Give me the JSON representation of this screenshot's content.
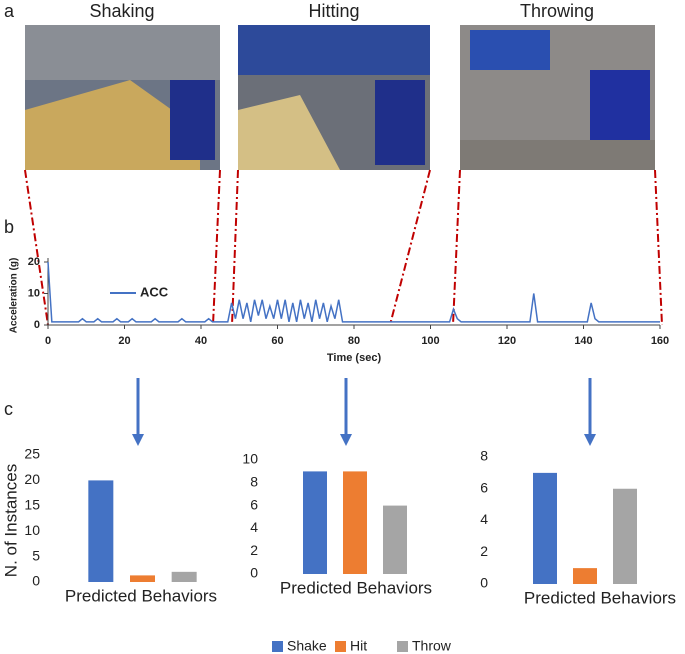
{
  "panel_labels": [
    "a",
    "b",
    "c"
  ],
  "photo_titles": [
    "Shaking",
    "Hitting",
    "Throwing"
  ],
  "legend": [
    {
      "name": "Shake",
      "color": "#4472c4"
    },
    {
      "name": "Hit",
      "color": "#ed7d31"
    },
    {
      "name": "Throw",
      "color": "#a5a5a5"
    }
  ],
  "chart_data": [
    {
      "type": "line",
      "xlabel": "Time (sec)",
      "ylabel": "Acceleration (g)",
      "xlim": [
        0,
        160
      ],
      "xticks": [
        0,
        20,
        40,
        60,
        80,
        100,
        120,
        140,
        160
      ],
      "ylim": [
        0,
        20
      ],
      "yticks": [
        0,
        10,
        20
      ],
      "x": [
        0,
        1,
        2,
        3,
        4,
        5,
        6,
        7,
        8,
        9,
        10,
        11,
        12,
        13,
        14,
        15,
        16,
        17,
        18,
        19,
        20,
        21,
        22,
        23,
        24,
        25,
        26,
        27,
        28,
        29,
        30,
        31,
        32,
        33,
        34,
        35,
        36,
        37,
        38,
        39,
        40,
        41,
        42,
        43,
        44,
        45,
        46,
        47,
        48,
        49,
        50,
        51,
        52,
        53,
        54,
        55,
        56,
        57,
        58,
        59,
        60,
        61,
        62,
        63,
        64,
        65,
        66,
        67,
        68,
        69,
        70,
        71,
        72,
        73,
        74,
        75,
        76,
        77,
        78,
        79,
        80,
        81,
        82,
        83,
        84,
        85,
        86,
        87,
        88,
        89,
        90,
        91,
        92,
        93,
        94,
        95,
        96,
        97,
        98,
        99,
        100,
        101,
        102,
        103,
        104,
        105,
        106,
        107,
        108,
        109,
        110,
        111,
        112,
        113,
        114,
        115,
        116,
        117,
        118,
        119,
        120,
        121,
        122,
        123,
        124,
        125,
        126,
        127,
        128,
        129,
        130,
        131,
        132,
        133,
        134,
        135,
        136,
        137,
        138,
        139,
        140,
        141,
        142,
        143,
        144,
        145,
        146,
        147,
        148,
        149,
        150,
        151,
        152,
        153,
        154,
        155,
        156,
        157,
        158,
        159,
        160
      ],
      "series": [
        {
          "name": "ACC",
          "color": "#4472c4",
          "values": [
            20,
            1,
            1,
            1,
            1,
            1,
            1,
            1,
            1,
            2,
            1,
            1,
            1,
            2,
            1,
            1,
            1,
            1,
            2,
            1,
            1,
            1,
            2,
            1,
            1,
            1,
            1,
            1,
            2,
            1,
            1,
            1,
            1,
            1,
            1,
            2,
            1,
            1,
            1,
            1,
            1,
            1,
            2,
            1,
            1,
            1,
            1,
            1,
            7,
            2,
            8,
            2,
            7,
            1,
            8,
            3,
            8,
            2,
            6,
            2,
            8,
            2,
            8,
            1,
            7,
            1,
            8,
            2,
            7,
            1,
            8,
            2,
            7,
            1,
            6,
            2,
            8,
            1,
            1,
            1,
            1,
            1,
            1,
            1,
            1,
            1,
            1,
            1,
            1,
            1,
            1,
            1,
            1,
            1,
            1,
            1,
            1,
            1,
            1,
            1,
            1,
            1,
            1,
            1,
            1,
            1,
            5,
            2,
            1,
            1,
            1,
            1,
            1,
            1,
            1,
            1,
            1,
            1,
            1,
            1,
            1,
            1,
            1,
            1,
            1,
            1,
            1,
            10,
            1,
            1,
            1,
            1,
            1,
            1,
            1,
            1,
            1,
            1,
            1,
            1,
            1,
            1,
            7,
            2,
            1,
            1,
            1,
            1,
            1,
            1,
            1,
            1,
            1,
            1,
            1,
            1,
            1,
            1,
            1,
            1,
            1
          ]
        }
      ]
    },
    {
      "type": "bar",
      "xlabel": "Predicted Behaviors",
      "ylabel": "N. of Instances",
      "ylim": [
        0,
        25
      ],
      "yticks": [
        0,
        5,
        10,
        15,
        20,
        25
      ],
      "values": [
        20,
        1.3,
        2
      ]
    },
    {
      "type": "bar",
      "xlabel": "Predicted Behaviors",
      "ylim": [
        0,
        10
      ],
      "yticks": [
        0,
        2,
        4,
        6,
        8,
        10
      ],
      "values": [
        9,
        9,
        6
      ]
    },
    {
      "type": "bar",
      "xlabel": "Predicted Behaviors",
      "ylim": [
        0,
        8
      ],
      "yticks": [
        0,
        2,
        4,
        6,
        8
      ],
      "values": [
        7,
        1,
        6
      ]
    }
  ]
}
